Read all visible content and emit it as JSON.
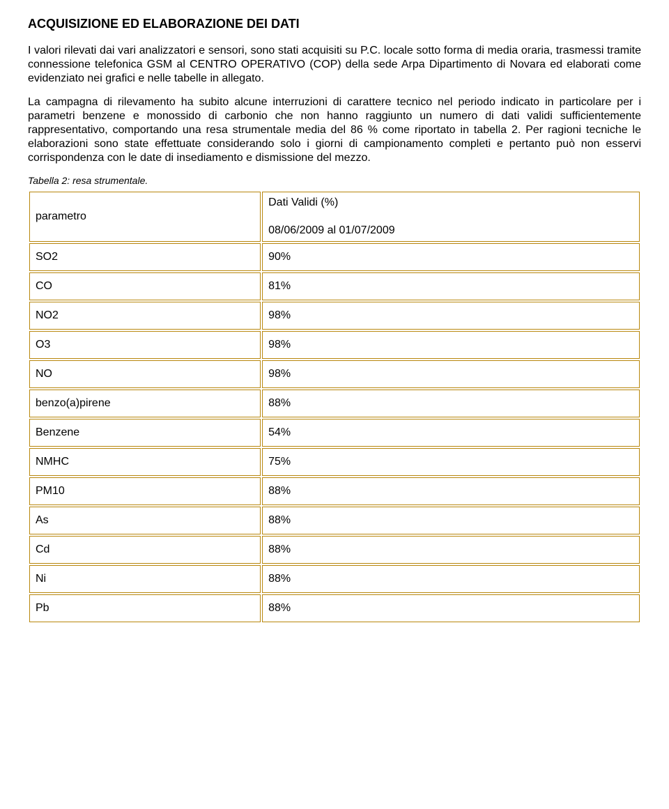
{
  "title": "ACQUISIZIONE ED ELABORAZIONE DEI DATI",
  "paragraph1": "I valori rilevati dai vari analizzatori e sensori, sono stati acquisiti su P.C. locale sotto forma di media oraria, trasmessi tramite connessione telefonica GSM al CENTRO OPERATIVO (COP) della sede Arpa Dipartimento di Novara ed elaborati come evidenziato nei grafici e nelle tabelle in allegato.",
  "paragraph2": "La campagna di rilevamento ha subito alcune interruzioni di carattere tecnico nel periodo indicato in particolare per i parametri benzene e monossido di carbonio che non hanno raggiunto un numero di dati validi sufficientemente rappresentativo, comportando una resa strumentale media del 86 % come riportato in tabella 2. Per ragioni tecniche le elaborazioni sono state effettuate considerando solo i giorni di campionamento completi e pertanto può non esservi corrispondenza con le date di insediamento e dismissione del mezzo.",
  "caption": "Tabella 2: resa strumentale.",
  "table": {
    "border_color": "#b8860b",
    "param_header": "parametro",
    "value_header_top": "Dati Validi (%)",
    "value_header_bottom": "08/06/2009 al 01/07/2009",
    "rows": [
      {
        "param": "SO2",
        "value": "90%"
      },
      {
        "param": "CO",
        "value": "81%"
      },
      {
        "param": "NO2",
        "value": "98%"
      },
      {
        "param": "O3",
        "value": "98%"
      },
      {
        "param": "NO",
        "value": "98%"
      },
      {
        "param": "benzo(a)pirene",
        "value": "88%"
      },
      {
        "param": "Benzene",
        "value": "54%"
      },
      {
        "param": "NMHC",
        "value": "75%"
      },
      {
        "param": "PM10",
        "value": "88%"
      },
      {
        "param": "As",
        "value": "88%"
      },
      {
        "param": "Cd",
        "value": "88%"
      },
      {
        "param": "Ni",
        "value": "88%"
      },
      {
        "param": "Pb",
        "value": "88%"
      }
    ]
  }
}
